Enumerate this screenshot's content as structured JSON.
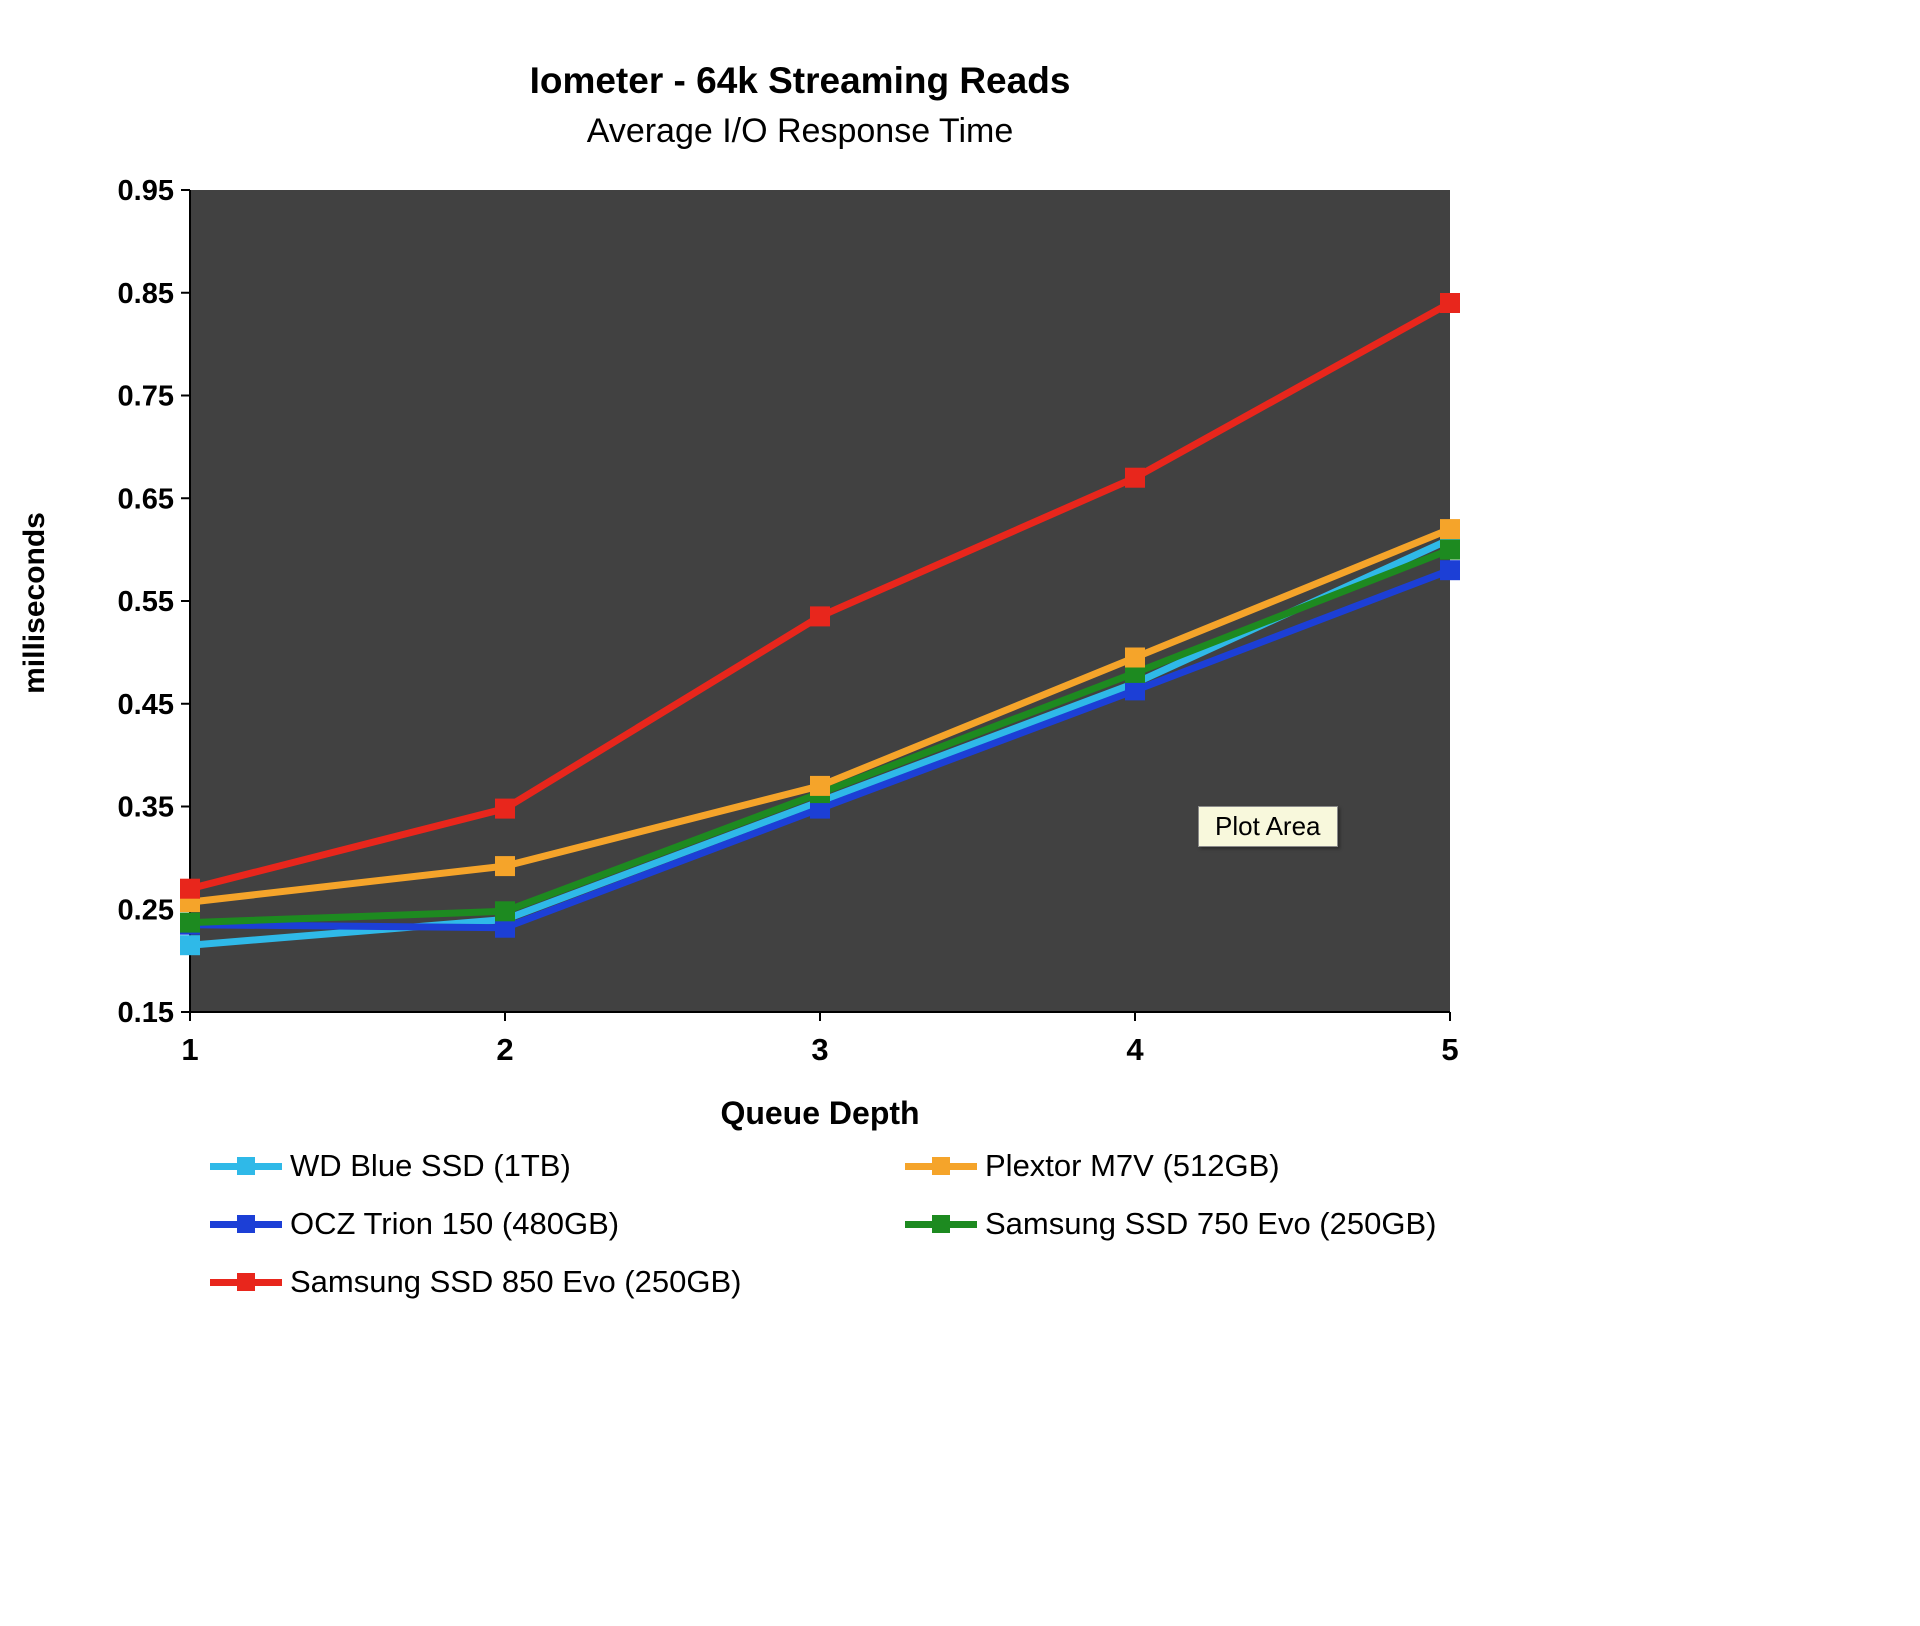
{
  "plot_area_label": "Plot Area",
  "chart_data": {
    "type": "line",
    "title": "Iometer - 64k Streaming Reads",
    "subtitle": "Average I/O Response Time",
    "xlabel": "Queue Depth",
    "ylabel": "milliseconds",
    "x": [
      1,
      2,
      3,
      4,
      5
    ],
    "xtick_labels": [
      "1",
      "2",
      "3",
      "4",
      "5"
    ],
    "ylim": [
      0.15,
      0.95
    ],
    "yticks": [
      0.95,
      0.85,
      0.75,
      0.65,
      0.55,
      0.45,
      0.35,
      0.25,
      0.15
    ],
    "ytick_labels": [
      "0.95",
      "0.85",
      "0.75",
      "0.65",
      "0.55",
      "0.45",
      "0.35",
      "0.25",
      "0.15"
    ],
    "grid": false,
    "plot_bg": "#414141",
    "legend_position": "bottom",
    "series": [
      {
        "name": "WD Blue SSD (1TB)",
        "color": "#2fb9e8",
        "values": [
          0.215,
          0.24,
          0.355,
          0.47,
          0.61
        ]
      },
      {
        "name": "OCZ Trion 150 (480GB)",
        "color": "#1c3fd6",
        "values": [
          0.235,
          0.232,
          0.348,
          0.463,
          0.58
        ]
      },
      {
        "name": "Samsung SSD 850 Evo (250GB)",
        "color": "#e8261c",
        "values": [
          0.27,
          0.348,
          0.535,
          0.67,
          0.84
        ]
      },
      {
        "name": "Plextor M7V (512GB)",
        "color": "#f5a42a",
        "values": [
          0.257,
          0.292,
          0.37,
          0.495,
          0.62
        ]
      },
      {
        "name": "Samsung SSD 750 Evo (250GB)",
        "color": "#1d8a20",
        "values": [
          0.237,
          0.248,
          0.363,
          0.48,
          0.6
        ]
      }
    ],
    "draw_order": [
      0,
      1,
      4,
      3,
      2
    ],
    "legend_order": [
      0,
      3,
      1,
      4,
      2
    ]
  }
}
